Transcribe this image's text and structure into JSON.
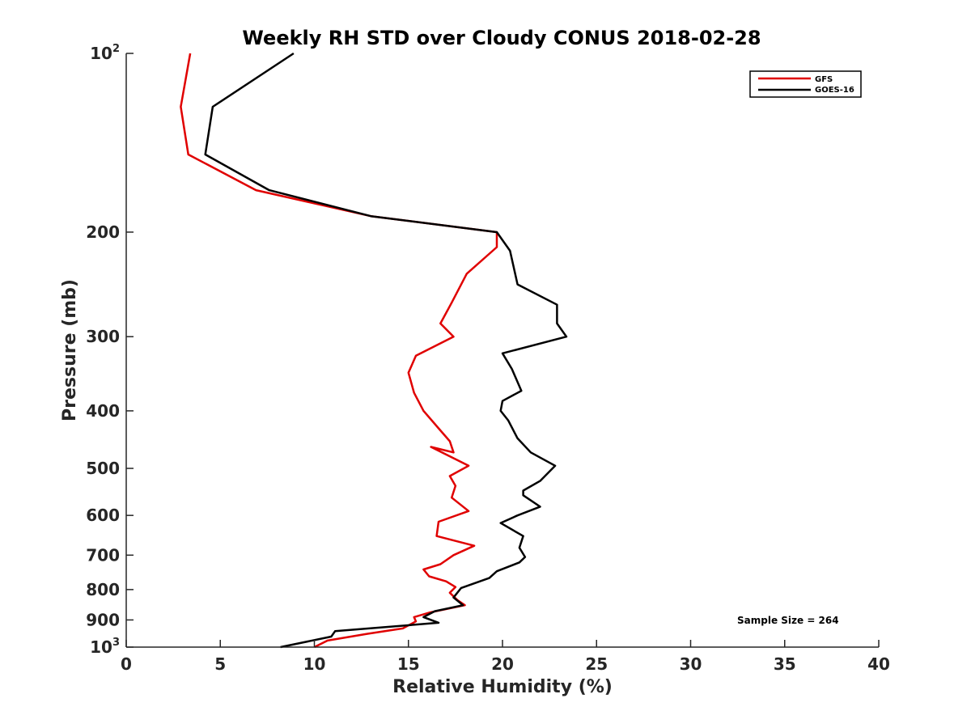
{
  "chart_data": {
    "type": "line",
    "title": "Weekly RH STD over Cloudy CONUS 2018-02-28",
    "xlabel": "Relative Humidity (%)",
    "ylabel": "Pressure (mb)",
    "xlim": [
      0,
      40
    ],
    "ylim": [
      100,
      1000
    ],
    "yscale": "log",
    "y_reversed": true,
    "grid": false,
    "legend": "top-right",
    "x_ticks": [
      "0",
      "5",
      "10",
      "15",
      "20",
      "25",
      "30",
      "35",
      "40"
    ],
    "y_ticks": [
      {
        "value": 100,
        "base": "10",
        "exp": "2"
      },
      {
        "value": 200,
        "label": "200"
      },
      {
        "value": 300,
        "label": "300"
      },
      {
        "value": 400,
        "label": "400"
      },
      {
        "value": 500,
        "label": "500"
      },
      {
        "value": 600,
        "label": "600"
      },
      {
        "value": 700,
        "label": "700"
      },
      {
        "value": 800,
        "label": "800"
      },
      {
        "value": 900,
        "label": "900"
      },
      {
        "value": 1000,
        "base": "10",
        "exp": "3"
      }
    ],
    "annotation": "Sample Size = 264",
    "series": [
      {
        "name": "GFS",
        "color": "#e00000",
        "x": [
          3.4,
          2.9,
          3.3,
          6.9,
          13.0,
          19.7,
          19.7,
          18.1,
          17.3,
          16.7,
          17.4,
          15.4,
          15.0,
          15.3,
          15.8,
          16.6,
          17.2,
          17.4,
          16.2,
          18.2,
          17.2,
          17.5,
          17.3,
          18.2,
          16.6,
          16.5,
          18.5,
          17.4,
          16.7,
          15.8,
          16.1,
          17.0,
          17.5,
          17.2,
          17.6,
          18.0,
          16.1,
          15.3,
          15.4,
          14.7,
          12.8,
          10.7,
          10.0
        ],
        "y": [
          100,
          123,
          148,
          170,
          188,
          200,
          212,
          235,
          263,
          285,
          300,
          323,
          345,
          373,
          400,
          428,
          450,
          470,
          460,
          495,
          515,
          535,
          560,
          590,
          615,
          650,
          675,
          700,
          725,
          740,
          760,
          775,
          792,
          810,
          833,
          850,
          875,
          890,
          905,
          930,
          950,
          975,
          1000
        ]
      },
      {
        "name": "GOES-16",
        "color": "#000000",
        "x": [
          8.9,
          4.6,
          4.2,
          7.6,
          13.0,
          19.7,
          20.4,
          20.8,
          22.9,
          22.9,
          23.4,
          20.0,
          20.5,
          21.0,
          20.0,
          19.9,
          20.3,
          20.8,
          21.5,
          22.8,
          22.0,
          21.1,
          21.1,
          22.0,
          20.8,
          19.9,
          21.1,
          20.9,
          21.2,
          20.9,
          19.7,
          19.3,
          17.8,
          17.4,
          17.9,
          16.4,
          15.8,
          16.6,
          11.1,
          10.9,
          8.2
        ],
        "y": [
          100,
          123,
          148,
          170,
          188,
          200,
          215,
          245,
          265,
          285,
          300,
          320,
          340,
          370,
          385,
          400,
          415,
          445,
          470,
          495,
          525,
          545,
          555,
          580,
          600,
          618,
          650,
          680,
          705,
          720,
          745,
          765,
          795,
          825,
          850,
          870,
          890,
          910,
          940,
          960,
          1000
        ]
      }
    ]
  }
}
